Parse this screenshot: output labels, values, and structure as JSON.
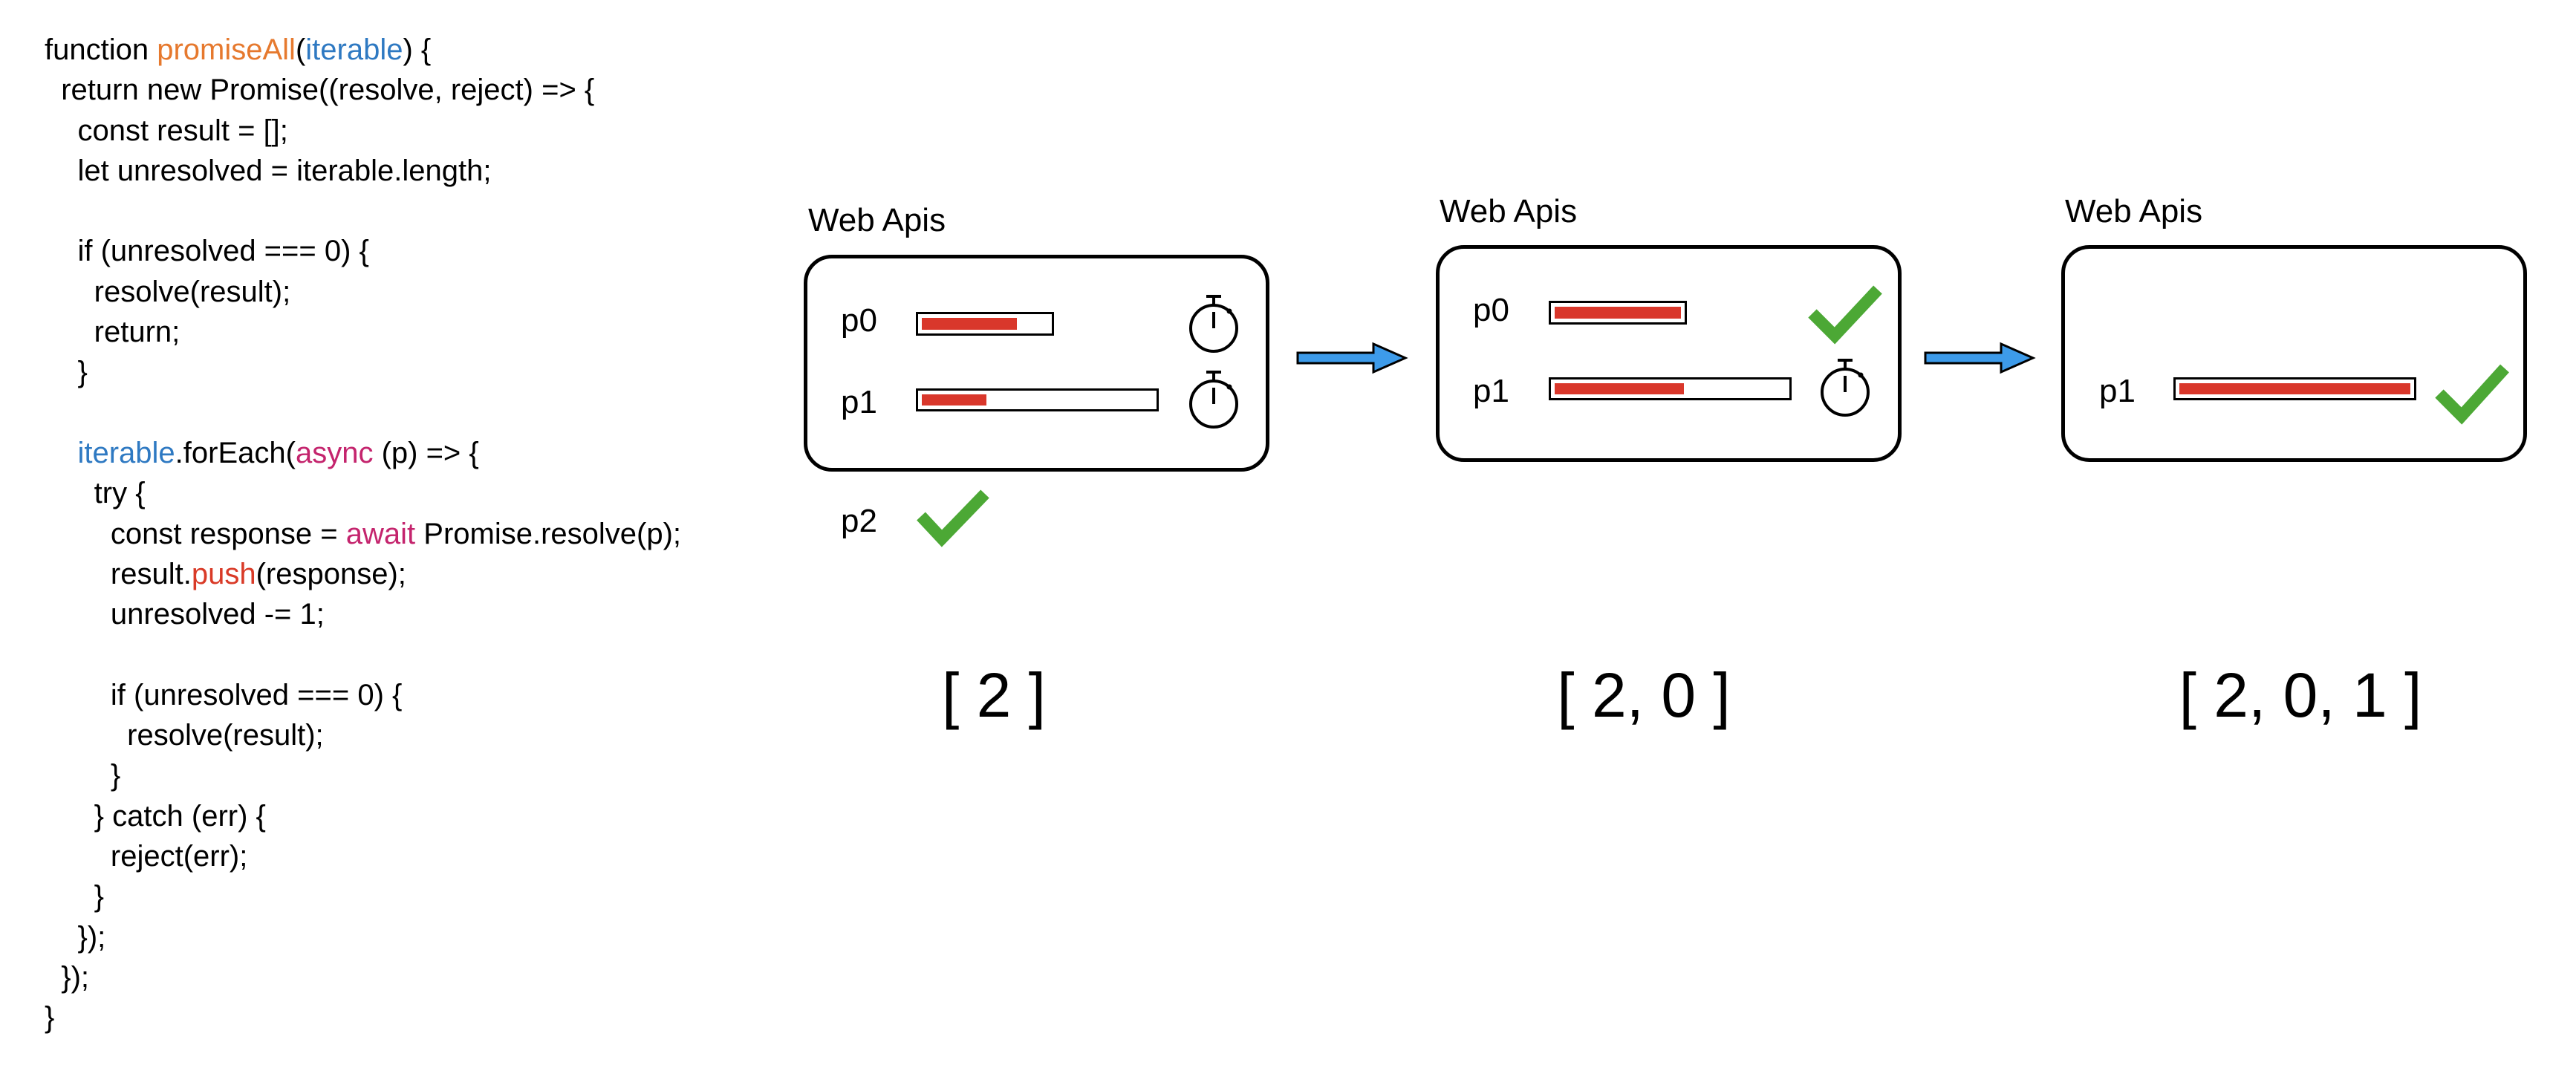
{
  "code": {
    "lines": [
      [
        {
          "t": "function "
        },
        {
          "t": "promiseAll",
          "c": "c-fn"
        },
        {
          "t": "("
        },
        {
          "t": "iterable",
          "c": "c-id"
        },
        {
          "t": ") {"
        }
      ],
      [
        {
          "t": "  return new Promise((resolve, reject) => {"
        }
      ],
      [
        {
          "t": "    const result = [];"
        }
      ],
      [
        {
          "t": "    let unresolved = iterable.length;"
        }
      ],
      [
        {
          "t": ""
        }
      ],
      [
        {
          "t": "    if (unresolved === 0) {"
        }
      ],
      [
        {
          "t": "      resolve(result);"
        }
      ],
      [
        {
          "t": "      return;"
        }
      ],
      [
        {
          "t": "    }"
        }
      ],
      [
        {
          "t": ""
        }
      ],
      [
        {
          "t": "    "
        },
        {
          "t": "iterable",
          "c": "c-id"
        },
        {
          "t": ".forEach("
        },
        {
          "t": "async",
          "c": "c-kw"
        },
        {
          "t": " (p) => {"
        }
      ],
      [
        {
          "t": "      try {"
        }
      ],
      [
        {
          "t": "        const response = "
        },
        {
          "t": "await",
          "c": "c-kw"
        },
        {
          "t": " Promise.resolve(p);"
        }
      ],
      [
        {
          "t": "        result."
        },
        {
          "t": "push",
          "c": "c-red"
        },
        {
          "t": "(response);"
        }
      ],
      [
        {
          "t": "        unresolved -= 1;"
        }
      ],
      [
        {
          "t": ""
        }
      ],
      [
        {
          "t": "        if (unresolved === 0) {"
        }
      ],
      [
        {
          "t": "          resolve(result);"
        }
      ],
      [
        {
          "t": "        }"
        }
      ],
      [
        {
          "t": "      } catch (err) {"
        }
      ],
      [
        {
          "t": "        reject(err);"
        }
      ],
      [
        {
          "t": "      }"
        }
      ],
      [
        {
          "t": "    });"
        }
      ],
      [
        {
          "t": "  });"
        }
      ],
      [
        {
          "t": "}"
        }
      ]
    ]
  },
  "colors": {
    "function_name": "#E6792E",
    "identifier": "#2E79C2",
    "keyword": "#C4246D",
    "method": "#D93A27",
    "progress_fill": "#D9372B",
    "check": "#4CA835",
    "arrow": "#3D9BEA"
  },
  "stages": [
    {
      "title": "Web Apis",
      "promises": [
        {
          "label": "p0",
          "progress": 0.75,
          "status": "timer-icon"
        },
        {
          "label": "p1",
          "progress": 0.28,
          "status": "timer-icon"
        }
      ],
      "resolved_outside": {
        "label": "p2",
        "status": "check-icon"
      },
      "result": "[ 2 ]"
    },
    {
      "title": "Web Apis",
      "promises": [
        {
          "label": "p0",
          "progress": 1.0,
          "status": "check-icon"
        },
        {
          "label": "p1",
          "progress": 0.56,
          "status": "timer-icon"
        }
      ],
      "result": "[ 2, 0 ]"
    },
    {
      "title": "Web Apis",
      "promises": [
        {
          "label": "p1",
          "progress": 1.0,
          "status": "check-icon"
        }
      ],
      "result": "[ 2, 0, 1 ]"
    }
  ],
  "arrows": [
    "arrow-right-icon",
    "arrow-right-icon"
  ]
}
